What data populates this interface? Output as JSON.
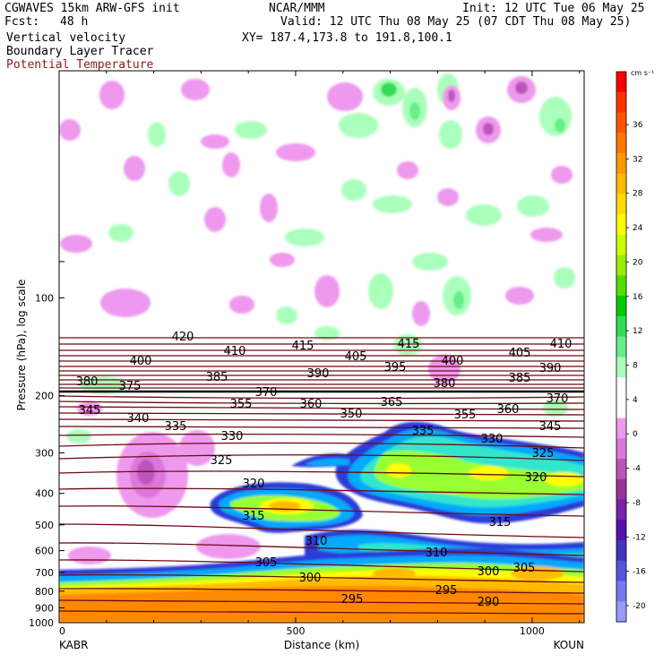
{
  "header": {
    "model": "CGWAVES 15km ARW-GFS init",
    "fcst_label": "Fcst:",
    "fcst_value": "48 h",
    "center": "NCAR/MMM",
    "init": "Init: 12 UTC Tue 06 May 25",
    "valid": "Valid: 12 UTC Thu 08 May 25 (07 CDT Thu 08 May 25)",
    "xy": "XY= 187.4,173.8 to 191.8,100.1",
    "fields": [
      "Vertical velocity",
      "Boundary Layer Tracer",
      "Potential Temperature"
    ],
    "theta_color": "#6e0b12"
  },
  "chart_data": {
    "type": "contour",
    "title": "",
    "xlabel": "Distance (km)",
    "ylabel": "Pressure (hPa), log scale",
    "xlim": [
      0,
      1110
    ],
    "ylim": [
      1000,
      20
    ],
    "x_ticks": [
      0,
      500,
      1000
    ],
    "y_ticks": [
      100,
      200,
      300,
      400,
      500,
      600,
      700,
      800,
      900,
      1000
    ],
    "left_station": "KABR",
    "right_station": "KOUN",
    "colorbar": {
      "unit": "cm s⁻¹",
      "levels": [
        36,
        32,
        28,
        24,
        20,
        16,
        12,
        8,
        4,
        0,
        -4,
        -8,
        -12,
        -16,
        -20
      ],
      "colors": [
        "#ff0000",
        "#ff3300",
        "#ff5500",
        "#ff7700",
        "#ff9900",
        "#ffbb00",
        "#ffdd00",
        "#ffff00",
        "#ccff00",
        "#99ee00",
        "#55dd00",
        "#00cc00",
        "#33dd55",
        "#66ee88",
        "#aaffbb",
        "#ffffff",
        "#ffffff",
        "#ee99ee",
        "#dd77dd",
        "#bb55bb",
        "#993399",
        "#7722aa",
        "#5511aa",
        "#4433bb",
        "#5555dd",
        "#7777ee",
        "#9999ff"
      ]
    },
    "tracer_colors": [
      "#2a3ed8",
      "#00aaff",
      "#33e6cc",
      "#99ff33",
      "#ffff00",
      "#ffbb00",
      "#ff8800"
    ],
    "theta_labels": [
      {
        "v": "420",
        "x": 204,
        "y": 380
      },
      {
        "v": "410",
        "x": 262,
        "y": 396
      },
      {
        "v": "415",
        "x": 338,
        "y": 390
      },
      {
        "v": "415",
        "x": 456,
        "y": 388
      },
      {
        "v": "410",
        "x": 626,
        "y": 388
      },
      {
        "v": "400",
        "x": 157,
        "y": 407
      },
      {
        "v": "405",
        "x": 397,
        "y": 402
      },
      {
        "v": "400",
        "x": 505,
        "y": 407
      },
      {
        "v": "405",
        "x": 580,
        "y": 398
      },
      {
        "v": "385",
        "x": 242,
        "y": 425
      },
      {
        "v": "390",
        "x": 355,
        "y": 421
      },
      {
        "v": "395",
        "x": 441,
        "y": 414
      },
      {
        "v": "390",
        "x": 614,
        "y": 415
      },
      {
        "v": "380",
        "x": 97,
        "y": 430
      },
      {
        "v": "375",
        "x": 145,
        "y": 435
      },
      {
        "v": "385",
        "x": 580,
        "y": 426
      },
      {
        "v": "380",
        "x": 496,
        "y": 432
      },
      {
        "v": "370",
        "x": 297,
        "y": 442
      },
      {
        "v": "370",
        "x": 622,
        "y": 449
      },
      {
        "v": "345",
        "x": 100,
        "y": 462
      },
      {
        "v": "355",
        "x": 269,
        "y": 455
      },
      {
        "v": "360",
        "x": 347,
        "y": 455
      },
      {
        "v": "365",
        "x": 437,
        "y": 453
      },
      {
        "v": "360",
        "x": 567,
        "y": 461
      },
      {
        "v": "340",
        "x": 154,
        "y": 471
      },
      {
        "v": "350",
        "x": 392,
        "y": 466
      },
      {
        "v": "355",
        "x": 519,
        "y": 467
      },
      {
        "v": "335",
        "x": 196,
        "y": 480
      },
      {
        "v": "335",
        "x": 472,
        "y": 485
      },
      {
        "v": "345",
        "x": 614,
        "y": 480
      },
      {
        "v": "330",
        "x": 259,
        "y": 491
      },
      {
        "v": "330",
        "x": 549,
        "y": 494
      },
      {
        "v": "325",
        "x": 247,
        "y": 518
      },
      {
        "v": "325",
        "x": 606,
        "y": 510
      },
      {
        "v": "320",
        "x": 283,
        "y": 544
      },
      {
        "v": "320",
        "x": 598,
        "y": 537
      },
      {
        "v": "315",
        "x": 283,
        "y": 580
      },
      {
        "v": "315",
        "x": 558,
        "y": 587
      },
      {
        "v": "310",
        "x": 353,
        "y": 608
      },
      {
        "v": "310",
        "x": 487,
        "y": 621
      },
      {
        "v": "305",
        "x": 297,
        "y": 632
      },
      {
        "v": "305",
        "x": 585,
        "y": 638
      },
      {
        "v": "300",
        "x": 346,
        "y": 649
      },
      {
        "v": "300",
        "x": 545,
        "y": 642
      },
      {
        "v": "295",
        "x": 498,
        "y": 663
      },
      {
        "v": "295",
        "x": 393,
        "y": 673
      },
      {
        "v": "290",
        "x": 545,
        "y": 676
      }
    ]
  }
}
